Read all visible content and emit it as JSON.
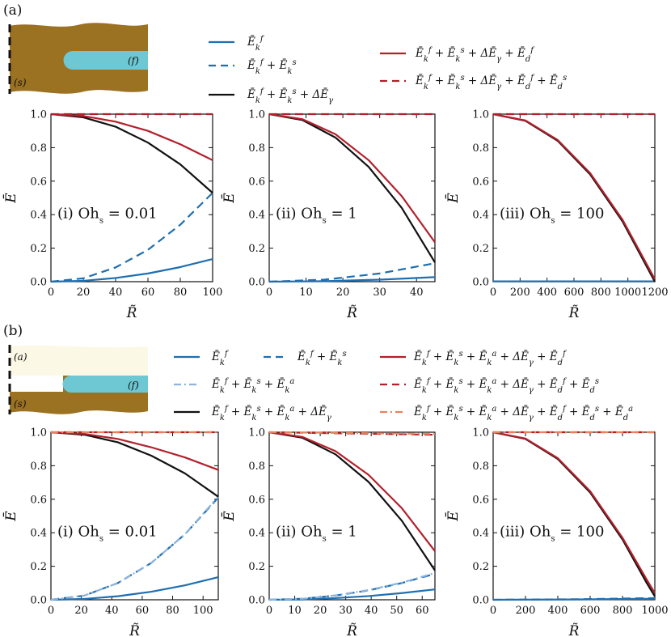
{
  "panel_labels": [
    "(a)",
    "(b)"
  ],
  "inset_labels": {
    "a": {
      "f": "(f)",
      "s": "(s)"
    },
    "b": {
      "a": "(a)",
      "f": "(f)",
      "s": "(s)"
    }
  },
  "colors": {
    "blue": "#1f6fb0",
    "black": "#111111",
    "red": "#b3202c",
    "light_blue": "#8db4dd",
    "orange": "#e8825e",
    "solid_brown": "#9b7122",
    "fluid_cyan": "#6dc8d3",
    "air_cream": "#fbf8e6"
  },
  "legends": {
    "a": [
      {
        "label": "Ē_k^f",
        "color": "blue",
        "style": "solid"
      },
      {
        "label": "Ē_k^f + Ē_k^s",
        "color": "blue",
        "style": "dashed"
      },
      {
        "label": "Ē_k^f + Ē_k^s + ΔĒ_γ",
        "color": "black",
        "style": "solid"
      },
      {
        "label": "Ē_k^f + Ē_k^s + ΔĒ_γ + Ē_d^f",
        "color": "red",
        "style": "solid"
      },
      {
        "label": "Ē_k^f + Ē_k^s + ΔĒ_γ + Ē_d^f + Ē_d^s",
        "color": "red",
        "style": "dashed"
      }
    ],
    "b": [
      {
        "label": "Ē_k^f",
        "color": "blue",
        "style": "solid"
      },
      {
        "label": "Ē_k^f + Ē_k^s",
        "color": "blue",
        "style": "dashed"
      },
      {
        "label": "Ē_k^f + Ē_k^s + Ē_k^a",
        "color": "light_blue",
        "style": "dashdot"
      },
      {
        "label": "Ē_k^f + Ē_k^s + Ē_k^a + ΔĒ_γ",
        "color": "black",
        "style": "solid"
      },
      {
        "label": "Ē_k^f + Ē_k^s + Ē_k^a + ΔĒ_γ + Ē_d^f",
        "color": "red",
        "style": "solid"
      },
      {
        "label": "Ē_k^f + Ē_k^s + Ē_k^a + ΔĒ_γ + Ē_d^f + Ē_d^s",
        "color": "red",
        "style": "dashed"
      },
      {
        "label": "Ē_k^f + Ē_k^s + Ē_k^a + ΔĒ_γ + Ē_d^f + Ē_d^s + Ē_d^a",
        "color": "orange",
        "style": "dashdot"
      }
    ]
  },
  "chart_data": [
    {
      "id": "a-i",
      "type": "line",
      "annotation": "(i) Oh_s = 0.01",
      "xlabel": "R̃",
      "ylabel": "Ē",
      "xlim": [
        0,
        100
      ],
      "ylim": [
        0,
        1
      ],
      "xticks": [
        0,
        20,
        40,
        60,
        80,
        100
      ],
      "yticks": [
        0,
        0.2,
        0.4,
        0.6,
        0.8,
        1.0
      ],
      "series": [
        {
          "name": "Ē_k^f",
          "color": "blue",
          "style": "solid",
          "x": [
            0,
            20,
            40,
            60,
            80,
            100
          ],
          "y": [
            0,
            0.005,
            0.022,
            0.049,
            0.087,
            0.135
          ]
        },
        {
          "name": "Ē_k^f + Ē_k^s",
          "color": "blue",
          "style": "dashed",
          "x": [
            0,
            20,
            40,
            60,
            80,
            100
          ],
          "y": [
            0,
            0.02,
            0.085,
            0.19,
            0.34,
            0.53
          ]
        },
        {
          "name": "Ē_k^f + Ē_k^s + ΔĒ_γ",
          "color": "black",
          "style": "solid",
          "x": [
            0,
            20,
            40,
            60,
            80,
            100
          ],
          "y": [
            1.0,
            0.981,
            0.925,
            0.83,
            0.7,
            0.53
          ]
        },
        {
          "name": "Ē_k^f + Ē_k^s + ΔĒ_γ + Ē_d^f",
          "color": "red",
          "style": "solid",
          "x": [
            0,
            20,
            40,
            60,
            80,
            100
          ],
          "y": [
            1.0,
            0.989,
            0.955,
            0.9,
            0.82,
            0.725
          ]
        },
        {
          "name": "Ē_k^f + Ē_k^s + ΔĒ_γ + Ē_d^f + Ē_d^s",
          "color": "red",
          "style": "dashed",
          "x": [
            0,
            100
          ],
          "y": [
            1.0,
            1.0
          ]
        }
      ]
    },
    {
      "id": "a-ii",
      "type": "line",
      "annotation": "(ii) Oh_s = 1",
      "xlabel": "R̃",
      "ylabel": "Ē",
      "xlim": [
        0,
        45
      ],
      "ylim": [
        0,
        1
      ],
      "xticks": [
        0,
        10,
        20,
        30,
        40
      ],
      "yticks": [
        0,
        0.2,
        0.4,
        0.6,
        0.8,
        1.0
      ],
      "series": [
        {
          "name": "Ē_k^f",
          "color": "blue",
          "style": "solid",
          "x": [
            0,
            15,
            30,
            45
          ],
          "y": [
            0,
            0.003,
            0.012,
            0.027
          ]
        },
        {
          "name": "Ē_k^f + Ē_k^s",
          "color": "blue",
          "style": "dashed",
          "x": [
            0,
            15,
            30,
            45
          ],
          "y": [
            0,
            0.012,
            0.049,
            0.11
          ]
        },
        {
          "name": "Ē_k^f + Ē_k^s + ΔĒ_γ",
          "color": "black",
          "style": "solid",
          "x": [
            0,
            9,
            18,
            27,
            36,
            45
          ],
          "y": [
            1.0,
            0.965,
            0.86,
            0.685,
            0.44,
            0.115
          ]
        },
        {
          "name": "Ē_k^f + Ē_k^s + ΔĒ_γ + Ē_d^f",
          "color": "red",
          "style": "solid",
          "x": [
            0,
            9,
            18,
            27,
            36,
            45
          ],
          "y": [
            1.0,
            0.97,
            0.88,
            0.725,
            0.51,
            0.235
          ]
        },
        {
          "name": "Ē_k^f + Ē_k^s + ΔĒ_γ + Ē_d^f + Ē_d^s",
          "color": "red",
          "style": "dashed",
          "x": [
            0,
            45
          ],
          "y": [
            1.0,
            1.0
          ]
        }
      ]
    },
    {
      "id": "a-iii",
      "type": "line",
      "annotation": "(iii) Oh_s = 100",
      "xlabel": "R̃",
      "ylabel": "Ē",
      "xlim": [
        0,
        1200
      ],
      "ylim": [
        0,
        1
      ],
      "xticks": [
        0,
        200,
        400,
        600,
        800,
        1000,
        1200
      ],
      "yticks": [
        0,
        0.2,
        0.4,
        0.6,
        0.8,
        1.0
      ],
      "series": [
        {
          "name": "Ē_k^f",
          "color": "blue",
          "style": "solid",
          "x": [
            0,
            1200
          ],
          "y": [
            0.002,
            0.002
          ]
        },
        {
          "name": "Ē_k^f + Ē_k^s + ΔĒ_γ",
          "color": "black",
          "style": "solid",
          "x": [
            0,
            240,
            480,
            720,
            960,
            1200
          ],
          "y": [
            1.0,
            0.96,
            0.84,
            0.64,
            0.36,
            0.0
          ]
        },
        {
          "name": "Ē_k^f + Ē_k^s + ΔĒ_γ + Ē_d^f",
          "color": "red",
          "style": "solid",
          "x": [
            0,
            240,
            480,
            720,
            960,
            1200
          ],
          "y": [
            1.0,
            0.962,
            0.845,
            0.648,
            0.37,
            0.015
          ]
        },
        {
          "name": "Ē_k^f + Ē_k^s + ΔĒ_γ + Ē_d^f + Ē_d^s",
          "color": "red",
          "style": "dashed",
          "x": [
            0,
            1200
          ],
          "y": [
            1.0,
            1.0
          ]
        }
      ]
    },
    {
      "id": "b-i",
      "type": "line",
      "annotation": "(i) Oh_s = 0.01",
      "xlabel": "R̃",
      "ylabel": "Ē",
      "xlim": [
        0,
        110
      ],
      "ylim": [
        0,
        1
      ],
      "xticks": [
        0,
        20,
        40,
        60,
        80,
        100
      ],
      "yticks": [
        0,
        0.2,
        0.4,
        0.6,
        0.8,
        1.0
      ],
      "series": [
        {
          "name": "Ē_k^f",
          "color": "blue",
          "style": "solid",
          "x": [
            0,
            22,
            44,
            66,
            88,
            110
          ],
          "y": [
            0,
            0.005,
            0.021,
            0.048,
            0.086,
            0.135
          ]
        },
        {
          "name": "Ē_k^f + Ē_k^s",
          "color": "blue",
          "style": "dashed",
          "x": [
            0,
            22,
            44,
            66,
            88,
            110
          ],
          "y": [
            0,
            0.025,
            0.1,
            0.22,
            0.39,
            0.61
          ]
        },
        {
          "name": "Ē_k^f + Ē_k^s + Ē_k^a",
          "color": "light_blue",
          "style": "dashdot",
          "x": [
            0,
            22,
            44,
            66,
            88,
            110
          ],
          "y": [
            0,
            0.025,
            0.1,
            0.22,
            0.39,
            0.615
          ]
        },
        {
          "name": "Ē_k^f + Ē_k^s + Ē_k^a + ΔĒ_γ",
          "color": "black",
          "style": "solid",
          "x": [
            0,
            22,
            44,
            66,
            88,
            110
          ],
          "y": [
            1.0,
            0.985,
            0.94,
            0.86,
            0.755,
            0.615
          ]
        },
        {
          "name": "Ē_k^f + Ē_k^s + Ē_k^a + ΔĒ_γ + Ē_d^f",
          "color": "red",
          "style": "solid",
          "x": [
            0,
            22,
            44,
            66,
            88,
            110
          ],
          "y": [
            1.0,
            0.99,
            0.96,
            0.91,
            0.85,
            0.775
          ]
        },
        {
          "name": "Ē_k^f + Ē_k^s + Ē_k^a + ΔĒ_γ + Ē_d^f + Ē_d^s",
          "color": "red",
          "style": "dashed",
          "x": [
            0,
            110
          ],
          "y": [
            1.0,
            1.0
          ]
        },
        {
          "name": "Ē_k^f + Ē_k^s + Ē_k^a + ΔĒ_γ + Ē_d^f + Ē_d^s + Ē_d^a",
          "color": "orange",
          "style": "dashdot",
          "x": [
            0,
            110
          ],
          "y": [
            1.0,
            1.0
          ]
        }
      ]
    },
    {
      "id": "b-ii",
      "type": "line",
      "annotation": "(ii) Oh_s = 1",
      "xlabel": "R̃",
      "ylabel": "Ē",
      "xlim": [
        0,
        65
      ],
      "ylim": [
        0,
        1
      ],
      "xticks": [
        0,
        10,
        20,
        30,
        40,
        50,
        60
      ],
      "yticks": [
        0,
        0.2,
        0.4,
        0.6,
        0.8,
        1.0
      ],
      "series": [
        {
          "name": "Ē_k^f",
          "color": "blue",
          "style": "solid",
          "x": [
            0,
            13,
            26,
            39,
            52,
            65
          ],
          "y": [
            0,
            0.002,
            0.01,
            0.022,
            0.04,
            0.062
          ]
        },
        {
          "name": "Ē_k^f + Ē_k^s",
          "color": "blue",
          "style": "dashed",
          "x": [
            0,
            13,
            26,
            39,
            52,
            65
          ],
          "y": [
            0,
            0.006,
            0.025,
            0.056,
            0.1,
            0.155
          ]
        },
        {
          "name": "Ē_k^f + Ē_k^s + Ē_k^a",
          "color": "light_blue",
          "style": "dashdot",
          "x": [
            0,
            13,
            26,
            39,
            52,
            65
          ],
          "y": [
            0,
            0.006,
            0.026,
            0.058,
            0.102,
            0.16
          ]
        },
        {
          "name": "Ē_k^f + Ē_k^s + Ē_k^a + ΔĒ_γ",
          "color": "black",
          "style": "solid",
          "x": [
            0,
            13,
            26,
            39,
            52,
            65
          ],
          "y": [
            1.0,
            0.967,
            0.868,
            0.703,
            0.472,
            0.175
          ]
        },
        {
          "name": "Ē_k^f + Ē_k^s + Ē_k^a + ΔĒ_γ + Ē_d^f",
          "color": "red",
          "style": "solid",
          "x": [
            0,
            13,
            26,
            39,
            52,
            65
          ],
          "y": [
            1.0,
            0.972,
            0.887,
            0.745,
            0.547,
            0.29
          ]
        },
        {
          "name": "Ē_k^f + Ē_k^s + Ē_k^a + ΔĒ_γ + Ē_d^f + Ē_d^s",
          "color": "red",
          "style": "dashed",
          "x": [
            0,
            65
          ],
          "y": [
            1.0,
            0.985
          ]
        },
        {
          "name": "Ē_k^f + Ē_k^s + Ē_k^a + ΔĒ_γ + Ē_d^f + Ē_d^s + Ē_d^a",
          "color": "orange",
          "style": "dashdot",
          "x": [
            0,
            65
          ],
          "y": [
            1.0,
            0.99
          ]
        }
      ]
    },
    {
      "id": "b-iii",
      "type": "line",
      "annotation": "(iii) Oh_s = 100",
      "xlabel": "R̃",
      "ylabel": "Ē",
      "xlim": [
        0,
        1000
      ],
      "ylim": [
        0,
        1
      ],
      "xticks": [
        0,
        200,
        400,
        600,
        800,
        1000
      ],
      "yticks": [
        0,
        0.2,
        0.4,
        0.6,
        0.8,
        1.0
      ],
      "series": [
        {
          "name": "Ē_k^f",
          "color": "blue",
          "style": "solid",
          "x": [
            0,
            500,
            1000
          ],
          "y": [
            0.0,
            0.002,
            0.006
          ]
        },
        {
          "name": "Ē_k^f + Ē_k^s",
          "color": "blue",
          "style": "dashed",
          "x": [
            0,
            500,
            1000
          ],
          "y": [
            0.0,
            0.003,
            0.01
          ]
        },
        {
          "name": "Ē_k^f + Ē_k^s + Ē_k^a + ΔĒ_γ",
          "color": "black",
          "style": "solid",
          "x": [
            0,
            200,
            400,
            600,
            800,
            950,
            1000
          ],
          "y": [
            1.0,
            0.96,
            0.84,
            0.64,
            0.36,
            0.1,
            0.02
          ]
        },
        {
          "name": "Ē_k^f + Ē_k^s + Ē_k^a + ΔĒ_γ + Ē_d^f",
          "color": "red",
          "style": "solid",
          "x": [
            0,
            200,
            400,
            600,
            800,
            950,
            1000
          ],
          "y": [
            1.0,
            0.962,
            0.845,
            0.648,
            0.37,
            0.12,
            0.04
          ]
        },
        {
          "name": "Ē_k^f + Ē_k^s + Ē_k^a + ΔĒ_γ + Ē_d^f + Ē_d^s",
          "color": "red",
          "style": "dashed",
          "x": [
            0,
            1000
          ],
          "y": [
            1.0,
            1.0
          ]
        },
        {
          "name": "Ē_k^f + Ē_k^s + Ē_k^a + ΔĒ_γ + Ē_d^f + Ē_d^s + Ē_d^a",
          "color": "orange",
          "style": "dashdot",
          "x": [
            0,
            1000
          ],
          "y": [
            1.0,
            1.0
          ]
        }
      ]
    }
  ]
}
